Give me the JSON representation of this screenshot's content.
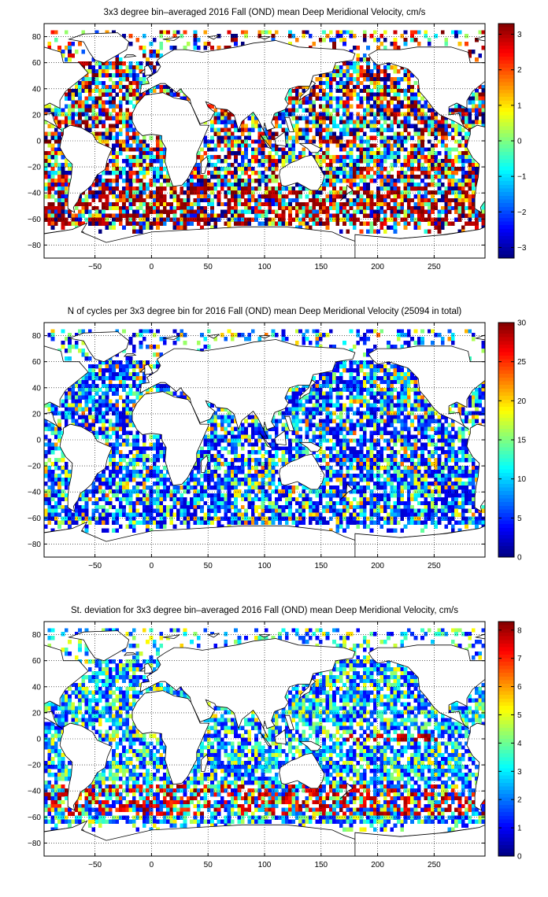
{
  "chart_data": [
    {
      "type": "heatmap",
      "title": "3x3 degree bin–averaged 2016 Fall (OND) mean Deep Meridional Velocity, cm/s",
      "xlabel": "",
      "ylabel": "",
      "x_ticks": [
        -50,
        0,
        50,
        100,
        150,
        200,
        250
      ],
      "y_ticks": [
        80,
        60,
        40,
        20,
        0,
        -20,
        -40,
        -60,
        -80
      ],
      "xlim": [
        -95,
        295
      ],
      "ylim": [
        -90,
        90
      ],
      "grid": true,
      "bin_size_deg": 3,
      "colorbar": {
        "ticks": [
          3,
          2,
          1,
          0,
          -1,
          -2,
          -3
        ],
        "range": [
          -3.3,
          3.3
        ],
        "colormap": "jet"
      }
    },
    {
      "type": "heatmap",
      "title": "N of cycles per 3x3 degree bin for 2016 Fall (OND) mean Deep Meridional Velocity (25094 in total)",
      "xlabel": "",
      "ylabel": "",
      "x_ticks": [
        -50,
        0,
        50,
        100,
        150,
        200,
        250
      ],
      "y_ticks": [
        80,
        60,
        40,
        20,
        0,
        -20,
        -40,
        -60,
        -80
      ],
      "xlim": [
        -95,
        295
      ],
      "ylim": [
        -90,
        90
      ],
      "grid": true,
      "bin_size_deg": 3,
      "total_cycles": 25094,
      "colorbar": {
        "ticks": [
          30,
          25,
          20,
          15,
          10,
          5,
          0
        ],
        "range": [
          0,
          30
        ],
        "colormap": "jet"
      }
    },
    {
      "type": "heatmap",
      "title": "St. deviation for 3x3 degree bin–averaged 2016 Fall (OND) mean Deep Meridional Velocity, cm/s",
      "xlabel": "",
      "ylabel": "",
      "x_ticks": [
        -50,
        0,
        50,
        100,
        150,
        200,
        250
      ],
      "y_ticks": [
        80,
        60,
        40,
        20,
        0,
        -20,
        -40,
        -60,
        -80
      ],
      "xlim": [
        -95,
        295
      ],
      "ylim": [
        -90,
        90
      ],
      "grid": true,
      "bin_size_deg": 3,
      "colorbar": {
        "ticks": [
          8,
          7,
          6,
          5,
          4,
          3,
          2,
          1,
          0
        ],
        "range": [
          0,
          8.3
        ],
        "colormap": "jet"
      }
    }
  ]
}
